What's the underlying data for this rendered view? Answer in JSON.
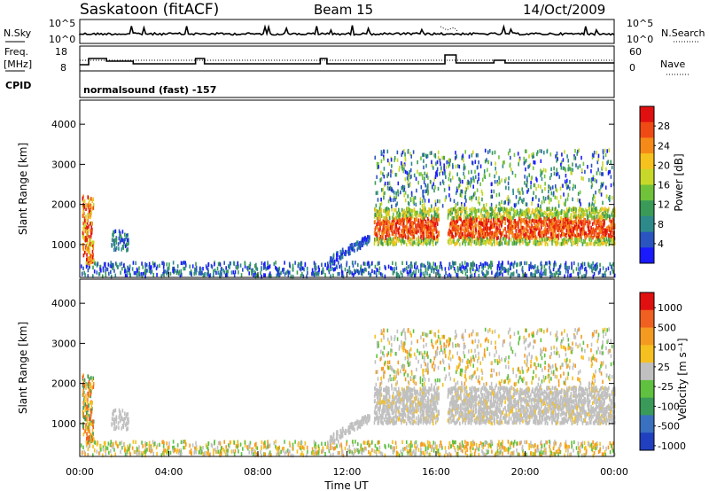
{
  "header": {
    "station": "Saskatoon (fitACF)",
    "beam": "Beam 15",
    "date": "14/Oct/2009"
  },
  "noise_panel": {
    "left_label": "N.Sky",
    "right_label": "N.Search",
    "tick_top": "10^5",
    "tick_bottom": "10^0"
  },
  "freq_panel": {
    "left_label_1": "Freq.",
    "left_label_2": "[MHz]",
    "right_label": "Nave",
    "left_ticks": [
      "18",
      "8"
    ],
    "right_ticks": [
      "60",
      "0"
    ],
    "cpid_label": "CPID",
    "mode_text": "normalsound (fast) -157"
  },
  "chart_data": [
    {
      "type": "heatmap",
      "name": "power",
      "ylabel": "Slant Range [km]",
      "xlabel": "",
      "xlim_hours": [
        0,
        24
      ],
      "ylim_km": [
        180,
        4600
      ],
      "y_ticks": [
        "1000",
        "2000",
        "3000",
        "4000"
      ],
      "colorbar": {
        "label": "Power [dB]",
        "ticks": [
          "4",
          "8",
          "12",
          "16",
          "20",
          "24",
          "28"
        ],
        "colors": [
          "#1a1aff",
          "#2a55c0",
          "#2e8a8a",
          "#3a9a58",
          "#6fc23a",
          "#c8d82a",
          "#f5c21e",
          "#f58a18",
          "#f04a14",
          "#e01010"
        ]
      }
    },
    {
      "type": "heatmap",
      "name": "velocity",
      "ylabel": "Slant Range [km]",
      "xlabel": "Time UT",
      "xlim_hours": [
        0,
        24
      ],
      "ylim_km": [
        180,
        4600
      ],
      "y_ticks": [
        "1000",
        "2000",
        "3000",
        "4000"
      ],
      "x_ticks": [
        "00:00",
        "04:00",
        "08:00",
        "12:00",
        "16:00",
        "20:00",
        "00:00"
      ],
      "colorbar": {
        "label": "Velocity [m s⁻¹]",
        "ticks": [
          "1000",
          "500",
          "100",
          "25",
          "-25",
          "-100",
          "-500",
          "-1000"
        ],
        "colors": [
          "#2040c0",
          "#3a70c0",
          "#3a9a5a",
          "#60c040",
          "#c0c0c0",
          "#f5c020",
          "#f59a20",
          "#f06020",
          "#e01010"
        ]
      }
    }
  ]
}
